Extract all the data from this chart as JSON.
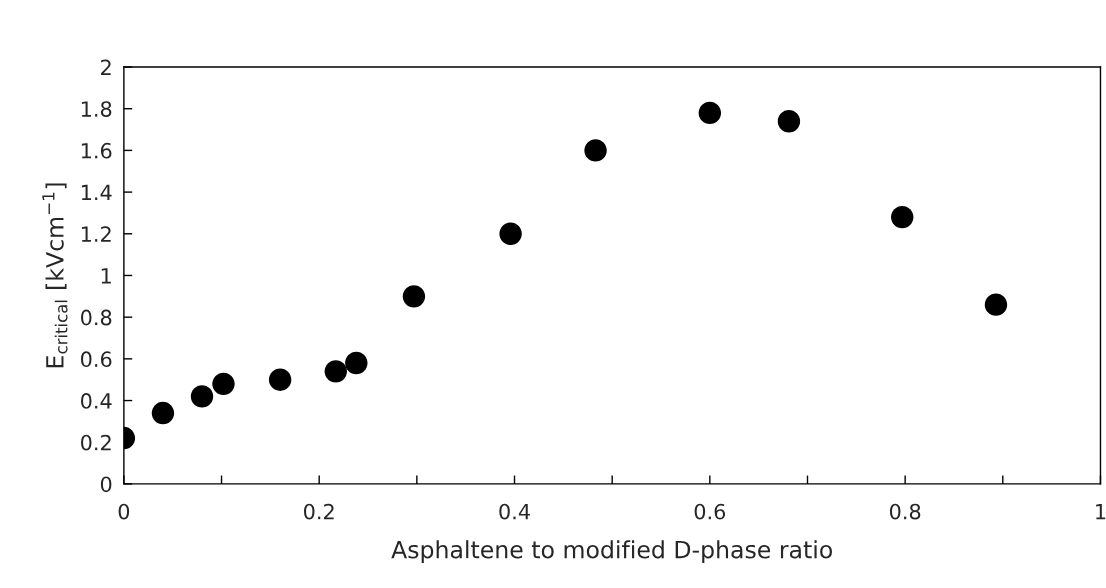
{
  "chart_data": {
    "type": "scatter",
    "xlabel": "Asphaltene to modified D-phase ratio",
    "ylabel": "E$_{critical}$ [kVcm$^{−1}$]",
    "x": [
      0,
      0.04,
      0.08,
      0.102,
      0.16,
      0.217,
      0.238,
      0.297,
      0.396,
      0.483,
      0.6,
      0.681,
      0.797,
      0.893
    ],
    "series": [
      {
        "color": "#000000",
        "values": [
          0.22,
          0.34,
          0.42,
          0.48,
          0.5,
          0.54,
          0.58,
          0.9,
          1.2,
          1.6,
          1.78,
          1.74,
          1.28,
          0.86
        ]
      }
    ],
    "marker": "circle",
    "xlim": [
      0,
      1
    ],
    "ylim": [
      0,
      2
    ],
    "xticks": [
      0,
      {
        "value": 0.1,
        "label": null
      },
      0.2,
      {
        "value": 0.3,
        "label": null
      },
      0.4,
      {
        "value": 0.5,
        "label": null
      },
      0.6,
      {
        "value": 0.7,
        "label": null
      },
      0.8,
      {
        "value": 0.9,
        "label": null
      },
      1
    ],
    "yticks": [
      0,
      0.2,
      0.4,
      0.6,
      0.8,
      1,
      1.2,
      1.4,
      1.6,
      1.8,
      2
    ],
    "grid": false
  }
}
